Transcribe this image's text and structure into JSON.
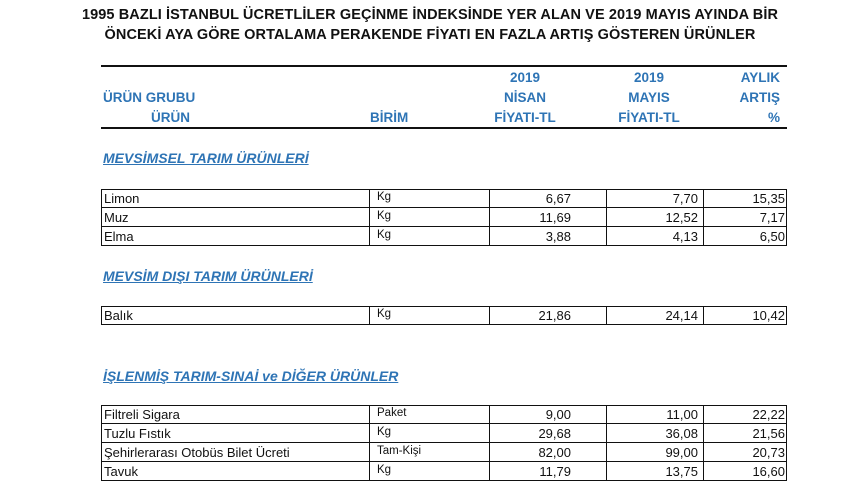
{
  "title": {
    "line1": "1995 BAZLI İSTANBUL ÜCRETLİLER GEÇİNME İNDEKSİNDE YER ALAN VE 2019 MAYIS AYINDA BİR",
    "line2": "ÖNCEKİ AYA GÖRE ORTALAMA PERAKENDE FİYATI EN FAZLA ARTIŞ GÖSTEREN ÜRÜNLER"
  },
  "headers": {
    "group": "ÜRÜN GRUBU",
    "product": "ÜRÜN",
    "unit": "BİRİM",
    "april": [
      "2019",
      "NİSAN",
      "FİYATI-TL"
    ],
    "may": [
      "2019",
      "MAYIS",
      "FİYATI-TL"
    ],
    "change": [
      "AYLIK",
      "ARTIŞ",
      "%"
    ]
  },
  "sections": [
    {
      "title": "MEVSİMSEL TARIM ÜRÜNLERİ",
      "rows": [
        {
          "name": "Limon",
          "unit": "Kg",
          "april": "6,67",
          "may": "7,70",
          "change": "15,35"
        },
        {
          "name": "Muz",
          "unit": "Kg",
          "april": "11,69",
          "may": "12,52",
          "change": "7,17"
        },
        {
          "name": "Elma",
          "unit": "Kg",
          "april": "3,88",
          "may": "4,13",
          "change": "6,50"
        }
      ]
    },
    {
      "title": "MEVSİM DIŞI TARIM ÜRÜNLERİ",
      "rows": [
        {
          "name": "Balık",
          "unit": "Kg",
          "april": "21,86",
          "may": "24,14",
          "change": "10,42"
        }
      ]
    },
    {
      "title": "İŞLENMİŞ TARIM-SINAİ ve DİĞER ÜRÜNLER",
      "rows": [
        {
          "name": "Filtreli Sigara",
          "unit": "Paket",
          "april": "9,00",
          "may": "11,00",
          "change": "22,22"
        },
        {
          "name": "Tuzlu Fıstık",
          "unit": "Kg",
          "april": "29,68",
          "may": "36,08",
          "change": "21,56"
        },
        {
          "name": "Şehirlerarası Otobüs Bilet Ücreti",
          "unit": "Tam-Kişi",
          "april": "82,00",
          "may": "99,00",
          "change": "20,73"
        },
        {
          "name": "Tavuk",
          "unit": "Kg",
          "april": "11,79",
          "may": "13,75",
          "change": "16,60"
        }
      ]
    }
  ]
}
